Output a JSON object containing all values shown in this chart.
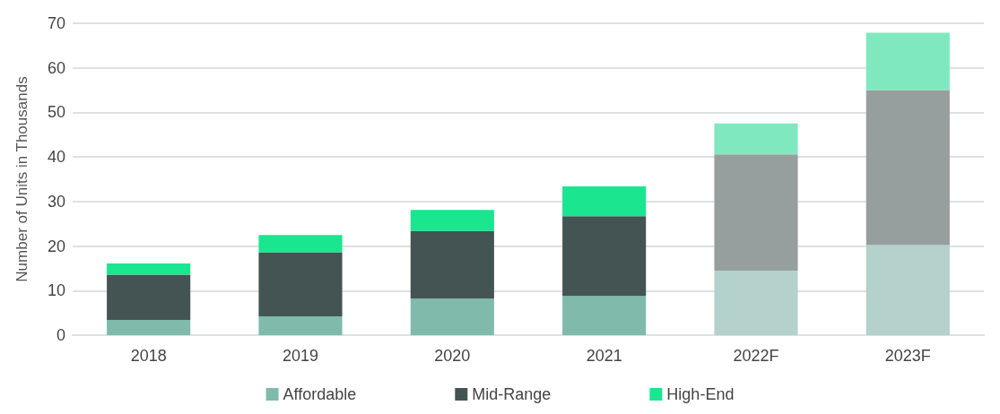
{
  "chart_data": {
    "type": "bar",
    "stacked": true,
    "ylabel": "Number of Units in Thousands",
    "categories": [
      "2018",
      "2019",
      "2020",
      "2021",
      "2022F",
      "2023F"
    ],
    "series": [
      {
        "name": "Affordable",
        "color": "#7fbaab",
        "colors": [
          "#7fbaab",
          "#7fbaab",
          "#7fbaab",
          "#7fbaab",
          "#b4d1cb",
          "#b4d1cb"
        ],
        "values": [
          3.4,
          4.2,
          8.2,
          8.8,
          14.5,
          20.2
        ]
      },
      {
        "name": "Mid-Range",
        "color": "#435453",
        "colors": [
          "#435453",
          "#435453",
          "#435453",
          "#435453",
          "#969f9e",
          "#969f9e"
        ],
        "values": [
          10.2,
          14.4,
          15.2,
          17.9,
          26.1,
          34.8
        ]
      },
      {
        "name": "High-End",
        "color": "#1ae690",
        "colors": [
          "#1ae690",
          "#1ae690",
          "#1ae690",
          "#1ae690",
          "#80e8bf",
          "#80e8bf"
        ],
        "values": [
          2.5,
          3.9,
          4.7,
          6.7,
          6.9,
          12.9
        ]
      }
    ],
    "ylim": [
      0,
      70
    ],
    "yticks": [
      0,
      10,
      20,
      30,
      40,
      50,
      60,
      70
    ],
    "grid": "y",
    "legend": "bottom"
  }
}
